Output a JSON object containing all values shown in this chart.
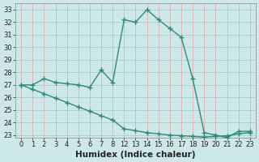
{
  "xlabel": "Humidex (Indice chaleur)",
  "xlabels": [
    "0",
    "1",
    "2",
    "3",
    "4",
    "5",
    "6",
    "7",
    "8",
    "12",
    "13",
    "14",
    "15",
    "16",
    "17",
    "18",
    "19",
    "20",
    "21",
    "22",
    "23"
  ],
  "line1_y": [
    27.0,
    27.0,
    27.5,
    27.2,
    27.1,
    27.0,
    26.8,
    28.2,
    27.2,
    32.2,
    32.0,
    33.0,
    32.2,
    31.5,
    30.8,
    27.5,
    23.2,
    23.0,
    22.8,
    23.3,
    23.3
  ],
  "line2_y": [
    27.0,
    26.65,
    26.3,
    25.95,
    25.6,
    25.25,
    24.9,
    24.55,
    24.2,
    23.5,
    23.35,
    23.2,
    23.1,
    23.0,
    22.95,
    22.9,
    22.85,
    22.9,
    22.95,
    23.1,
    23.2
  ],
  "line1_color": "#2e8b7a",
  "line2_color": "#2e8b7a",
  "marker": "+",
  "markersize": 4,
  "linewidth": 1.0,
  "bg_color": "#cce8e8",
  "vgrid_color": "#e8a0a0",
  "hgrid_color": "#a0cccc",
  "ylim_min": 22.8,
  "ylim_max": 33.5,
  "yticks": [
    23,
    24,
    25,
    26,
    27,
    28,
    29,
    30,
    31,
    32,
    33
  ],
  "tick_fontsize": 6,
  "label_fontsize": 7.5
}
